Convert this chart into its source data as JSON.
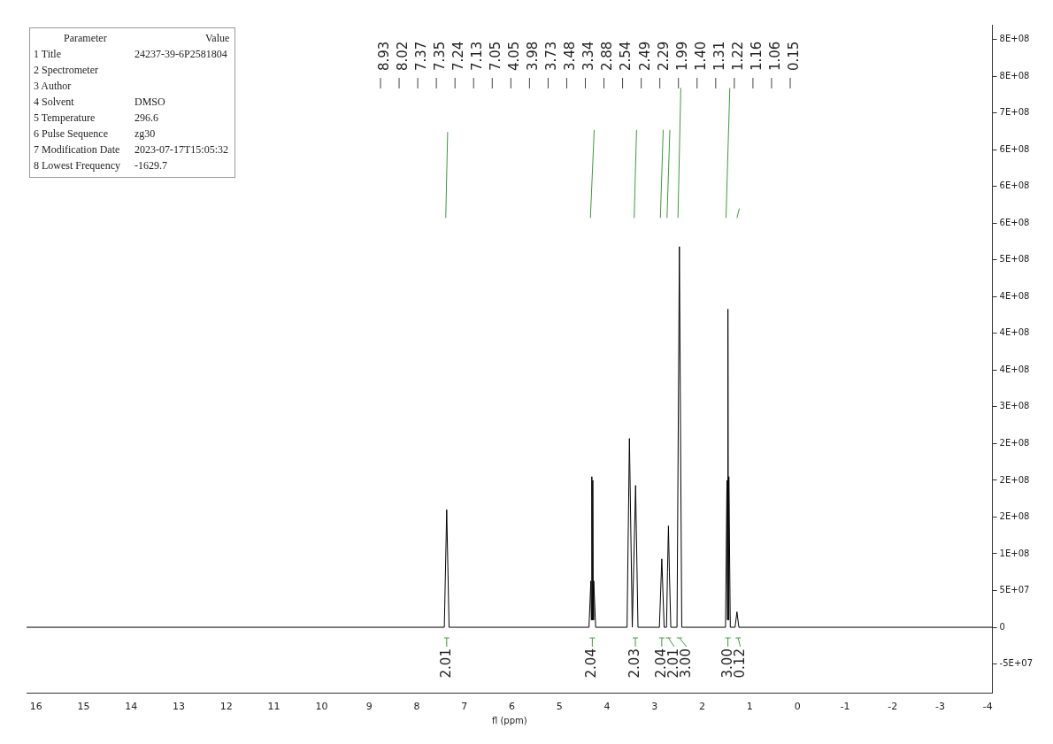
{
  "chart_data": [
    {
      "type": "other",
      "annotations": [
        "Parameter\tValue",
        "1 Title\t24237-39-6P2581804",
        "2 Spectrometer",
        "3 Author",
        "4 Solvent\tDMSO",
        "5 Temperature\t296.6",
        "6 Pulse Sequence\tzg30",
        "7 Modification Date\t2023-07-17T15:05:32",
        "8 Lowest Frequency\t-1629.7"
      ]
    },
    {
      "type": "line",
      "xlabel": "fl (ppm)",
      "xlim": [
        16.2,
        -4.1
      ],
      "xticks": [
        16,
        15,
        14,
        13,
        12,
        11,
        10,
        9,
        8,
        7,
        6,
        5,
        4,
        3,
        2,
        1,
        0,
        -1,
        -2,
        -3,
        -4
      ],
      "ylim": [
        -90000000,
        820000000
      ],
      "yticks": [
        {
          "value": -50000000,
          "label": "-5E+07"
        },
        0,
        {
          "value": 50000000,
          "label": "5E+07"
        },
        {
          "value": 100000000,
          "label": "1E+08"
        },
        {
          "value": 150000000,
          "label": "2E+08"
        },
        {
          "value": 200000000,
          "label": "2E+08"
        },
        {
          "value": 250000000,
          "label": "2E+08"
        },
        {
          "value": 300000000,
          "label": "3E+08"
        },
        {
          "value": 350000000,
          "label": "4E+08"
        },
        {
          "value": 400000000,
          "label": "4E+08"
        },
        {
          "value": 450000000,
          "label": "4E+08"
        },
        {
          "value": 500000000,
          "label": "5E+08"
        },
        {
          "value": 550000000,
          "label": "6E+08"
        },
        {
          "value": 600000000,
          "label": "6E+08"
        },
        {
          "value": 650000000,
          "label": "6E+08"
        },
        {
          "value": 700000000,
          "label": "7E+08"
        },
        {
          "value": 750000000,
          "label": "8E+08"
        },
        {
          "value": 800000000,
          "label": "8E+08"
        }
      ],
      "grid": false,
      "legend": false,
      "marker": "none",
      "line_style": "solid",
      "series": [
        {
          "color": "#000000",
          "x": [
            16.2,
            7.42,
            7.37,
            7.32,
            4.38,
            4.34,
            4.33,
            4.32,
            4.31,
            4.3,
            4.29,
            4.28,
            4.24,
            3.58,
            3.53,
            3.47,
            3.4,
            3.35,
            2.9,
            2.85,
            2.8,
            2.75,
            2.73,
            2.71,
            2.69,
            2.66,
            2.53,
            2.48,
            2.43,
            1.51,
            1.48,
            1.47,
            1.46,
            1.45,
            1.44,
            1.41,
            1.31,
            1.27,
            1.23,
            -4.1
          ],
          "values": [
            0,
            0,
            160000000,
            0,
            0,
            63000000,
            10000000,
            205000000,
            10000000,
            200000000,
            10000000,
            63000000,
            0,
            0,
            257000000,
            0,
            193000000,
            0,
            0,
            93000000,
            0,
            0,
            75000000,
            138000000,
            75000000,
            0,
            0,
            518000000,
            0,
            0,
            200000000,
            10000000,
            433000000,
            10000000,
            205000000,
            0,
            0,
            21000000,
            0,
            0
          ]
        },
        {
          "color": "#3c9a3c",
          "x": [
            7.39,
            7.35,
            7.3,
            4.35,
            4.27,
            4.2,
            3.43,
            3.38,
            3.2,
            2.88,
            2.82,
            2.78,
            2.74,
            2.68,
            2.6,
            2.51,
            2.45,
            2.0,
            1.5,
            1.42,
            1.35,
            1.27,
            1.22
          ],
          "values": [
            557000000,
            674000000,
            null,
            557000000,
            677000000,
            null,
            557000000,
            677000000,
            null,
            557000000,
            677000000,
            null,
            557000000,
            677000000,
            null,
            557000000,
            734000000,
            null,
            557000000,
            734000000,
            null,
            557000000,
            570000000
          ]
        }
      ],
      "annotations": [
        "8.93",
        "8.02",
        "7.37",
        "7.35",
        "7.24",
        "7.13",
        "7.05",
        "4.05",
        "3.98",
        "3.73",
        "3.48",
        "3.34",
        "2.88",
        "2.54",
        "2.49",
        "2.29",
        "1.99",
        "1.40",
        "1.31",
        "1.22",
        "1.16",
        "1.06",
        "0.15",
        "2.01",
        "2.04",
        "2.03",
        "2.04",
        "2.01",
        "3.00",
        "3.00",
        "0.12"
      ]
    }
  ]
}
